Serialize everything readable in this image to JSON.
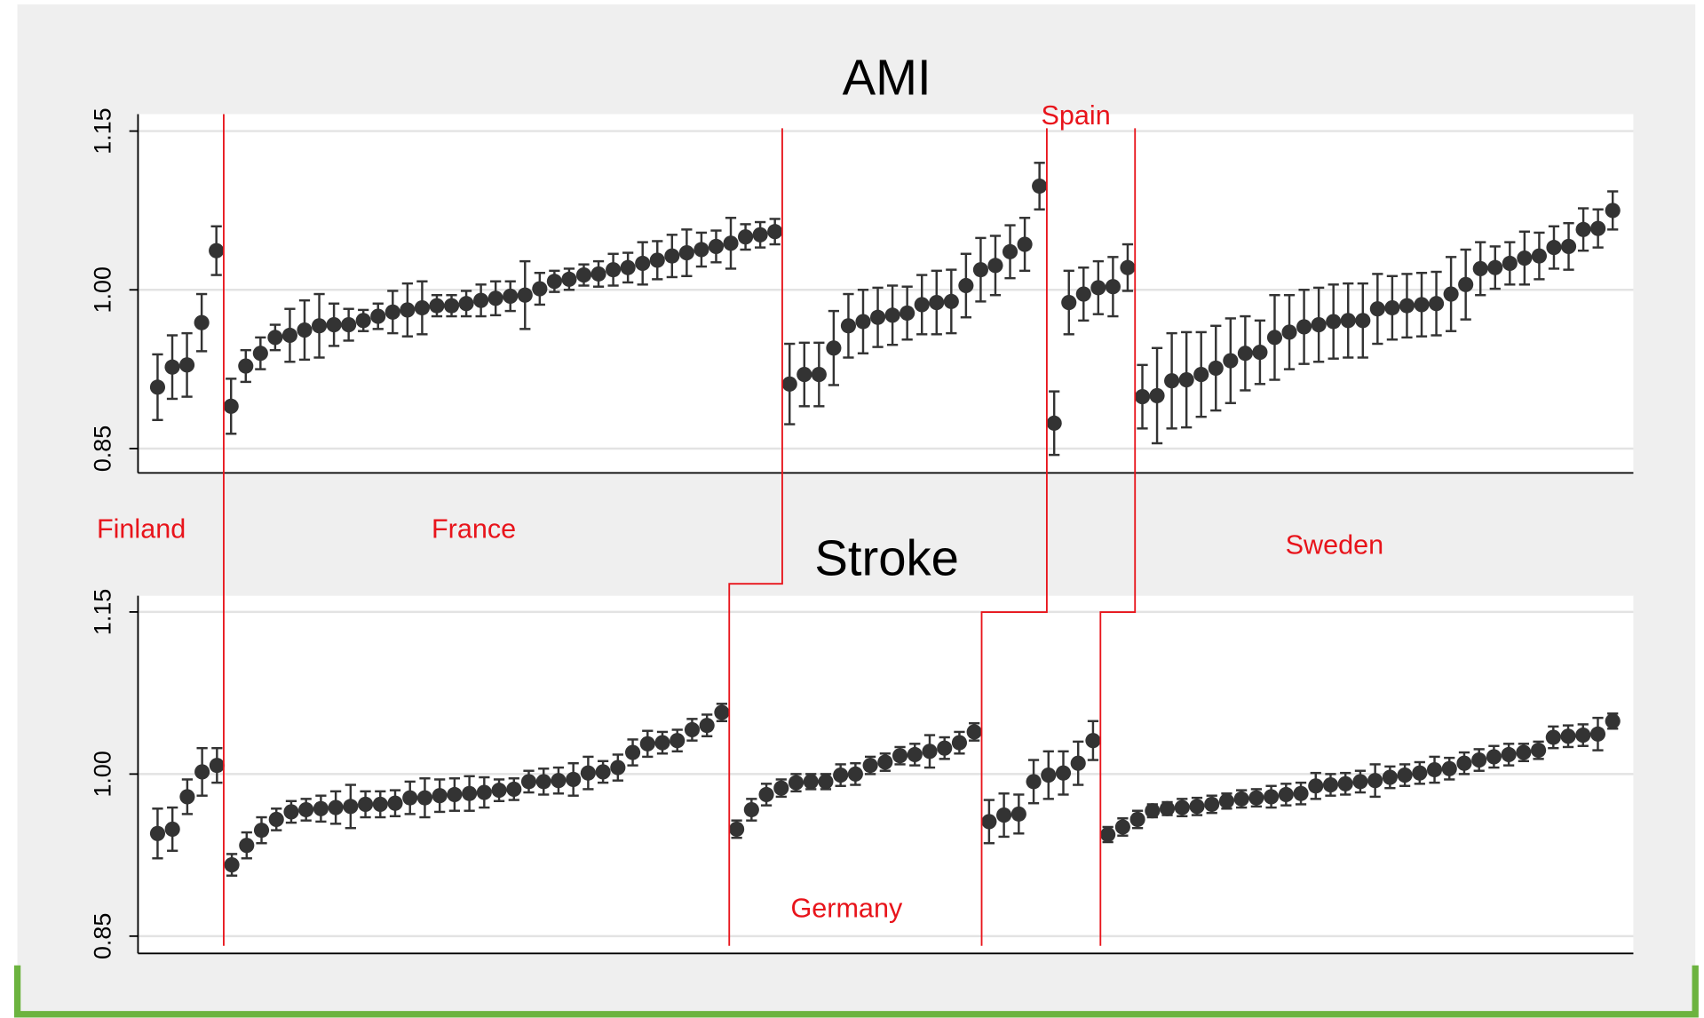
{
  "chart_data": [
    {
      "type": "errorbar",
      "title": "AMI",
      "ylim": [
        0.827,
        1.166
      ],
      "yticks": [
        0.85,
        {
          "value": 1,
          "label": "1.00"
        },
        1.15
      ],
      "grid": true,
      "series": [
        {
          "color": "#333333",
          "values": [
            0.908,
            0.927,
            0.929,
            0.969,
            1.037
          ],
          "errors": [
            0.031,
            0.03,
            0.03,
            0.027,
            0.023
          ]
        },
        {
          "color": "#333333",
          "values": [
            0.89,
            0.928,
            0.94,
            0.955,
            0.957,
            0.962,
            0.966,
            0.967,
            0.967,
            0.971,
            0.975,
            0.979,
            0.981,
            0.983,
            0.985,
            0.985,
            0.987,
            0.99,
            0.992,
            0.994,
            0.995,
            1.001,
            1.008,
            1.01,
            1.014,
            1.015,
            1.019,
            1.021,
            1.025,
            1.028,
            1.032,
            1.035,
            1.038,
            1.041,
            1.044,
            1.05,
            1.052,
            1.055
          ],
          "errors": [
            0.026,
            0.015,
            0.015,
            0.012,
            0.025,
            0.028,
            0.03,
            0.02,
            0.015,
            0.01,
            0.012,
            0.02,
            0.025,
            0.025,
            0.01,
            0.01,
            0.012,
            0.015,
            0.016,
            0.014,
            0.032,
            0.015,
            0.01,
            0.01,
            0.01,
            0.012,
            0.015,
            0.014,
            0.02,
            0.018,
            0.02,
            0.022,
            0.016,
            0.015,
            0.024,
            0.012,
            0.012,
            0.012
          ]
        },
        {
          "color": "#333333",
          "values": [
            0.911,
            0.92,
            0.92,
            0.945,
            0.966,
            0.97,
            0.974,
            0.976,
            0.978,
            0.986,
            0.988,
            0.989,
            1.004,
            1.019,
            1.023,
            1.036,
            1.043,
            1.098
          ],
          "errors": [
            0.038,
            0.03,
            0.03,
            0.035,
            0.03,
            0.03,
            0.028,
            0.028,
            0.025,
            0.028,
            0.03,
            0.03,
            0.03,
            0.03,
            0.028,
            0.025,
            0.025,
            0.022
          ]
        },
        {
          "color": "#333333",
          "values": [
            0.874,
            0.988,
            0.996,
            1.002,
            1.003,
            1.021
          ],
          "errors": [
            0.03,
            0.03,
            0.025,
            0.025,
            0.028,
            0.022
          ]
        },
        {
          "color": "#333333",
          "values": [
            0.899,
            0.9,
            0.914,
            0.915,
            0.92,
            0.926,
            0.933,
            0.94,
            0.941,
            0.955,
            0.96,
            0.965,
            0.967,
            0.97,
            0.971,
            0.971,
            0.982,
            0.983,
            0.985,
            0.986,
            0.987,
            0.996,
            1.005,
            1.02,
            1.021,
            1.025,
            1.03,
            1.032,
            1.04,
            1.041,
            1.057,
            1.058,
            1.075
          ],
          "errors": [
            0.03,
            0.045,
            0.045,
            0.045,
            0.04,
            0.04,
            0.04,
            0.035,
            0.03,
            0.04,
            0.035,
            0.035,
            0.035,
            0.035,
            0.035,
            0.035,
            0.033,
            0.03,
            0.03,
            0.03,
            0.03,
            0.035,
            0.033,
            0.025,
            0.02,
            0.02,
            0.025,
            0.022,
            0.02,
            0.022,
            0.02,
            0.018,
            0.018
          ]
        }
      ]
    },
    {
      "type": "errorbar",
      "title": "Stroke",
      "ylim": [
        0.834,
        1.165
      ],
      "yticks": [
        0.85,
        {
          "value": 1,
          "label": "1.00"
        },
        1.15
      ],
      "grid": true,
      "series": [
        {
          "color": "#333333",
          "values": [
            0.945,
            0.949,
            0.979,
            1.002,
            1.008
          ],
          "errors": [
            0.023,
            0.02,
            0.016,
            0.022,
            0.016
          ]
        },
        {
          "color": "#333333",
          "values": [
            0.916,
            0.934,
            0.948,
            0.958,
            0.965,
            0.967,
            0.968,
            0.969,
            0.97,
            0.972,
            0.972,
            0.973,
            0.978,
            0.978,
            0.98,
            0.981,
            0.982,
            0.983,
            0.985,
            0.986,
            0.993,
            0.993,
            0.994,
            0.995,
            1.001,
            1.002,
            1.006,
            1.02,
            1.028,
            1.029,
            1.031,
            1.041,
            1.045,
            1.057
          ],
          "errors": [
            0.01,
            0.012,
            0.012,
            0.01,
            0.01,
            0.01,
            0.012,
            0.015,
            0.02,
            0.012,
            0.012,
            0.012,
            0.015,
            0.018,
            0.015,
            0.015,
            0.016,
            0.014,
            0.01,
            0.01,
            0.01,
            0.012,
            0.012,
            0.015,
            0.015,
            0.01,
            0.012,
            0.012,
            0.012,
            0.01,
            0.01,
            0.01,
            0.01,
            0.008
          ]
        },
        {
          "color": "#333333",
          "values": [
            0.949,
            0.967,
            0.981,
            0.987,
            0.992,
            0.993,
            0.993,
            0.999,
            1.0,
            1.008,
            1.011,
            1.017,
            1.018,
            1.021,
            1.024,
            1.029,
            1.039
          ],
          "errors": [
            0.008,
            0.01,
            0.01,
            0.008,
            0.008,
            0.007,
            0.007,
            0.01,
            0.01,
            0.008,
            0.008,
            0.008,
            0.01,
            0.015,
            0.01,
            0.01,
            0.008
          ]
        },
        {
          "color": "#333333",
          "values": [
            0.956,
            0.962,
            0.963,
            0.993,
            0.999,
            1.001,
            1.01,
            1.031
          ],
          "errors": [
            0.02,
            0.02,
            0.018,
            0.02,
            0.022,
            0.02,
            0.02,
            0.018
          ]
        },
        {
          "color": "#333333",
          "values": [
            0.944,
            0.951,
            0.958,
            0.966,
            0.968,
            0.969,
            0.97,
            0.972,
            0.975,
            0.977,
            0.978,
            0.979,
            0.981,
            0.982,
            0.989,
            0.99,
            0.991,
            0.993,
            0.994,
            0.997,
            0.999,
            1.001,
            1.004,
            1.005,
            1.01,
            1.013,
            1.016,
            1.018,
            1.02,
            1.022,
            1.034,
            1.035,
            1.036,
            1.037,
            1.049
          ],
          "errors": [
            0.007,
            0.008,
            0.008,
            0.006,
            0.006,
            0.008,
            0.008,
            0.008,
            0.007,
            0.008,
            0.008,
            0.01,
            0.01,
            0.01,
            0.012,
            0.01,
            0.01,
            0.01,
            0.015,
            0.01,
            0.01,
            0.01,
            0.012,
            0.01,
            0.01,
            0.01,
            0.01,
            0.01,
            0.008,
            0.008,
            0.01,
            0.01,
            0.01,
            0.015,
            0.007
          ]
        }
      ]
    }
  ],
  "annotations": [
    "Finland",
    "France",
    "Germany",
    "Spain",
    "Sweden"
  ]
}
